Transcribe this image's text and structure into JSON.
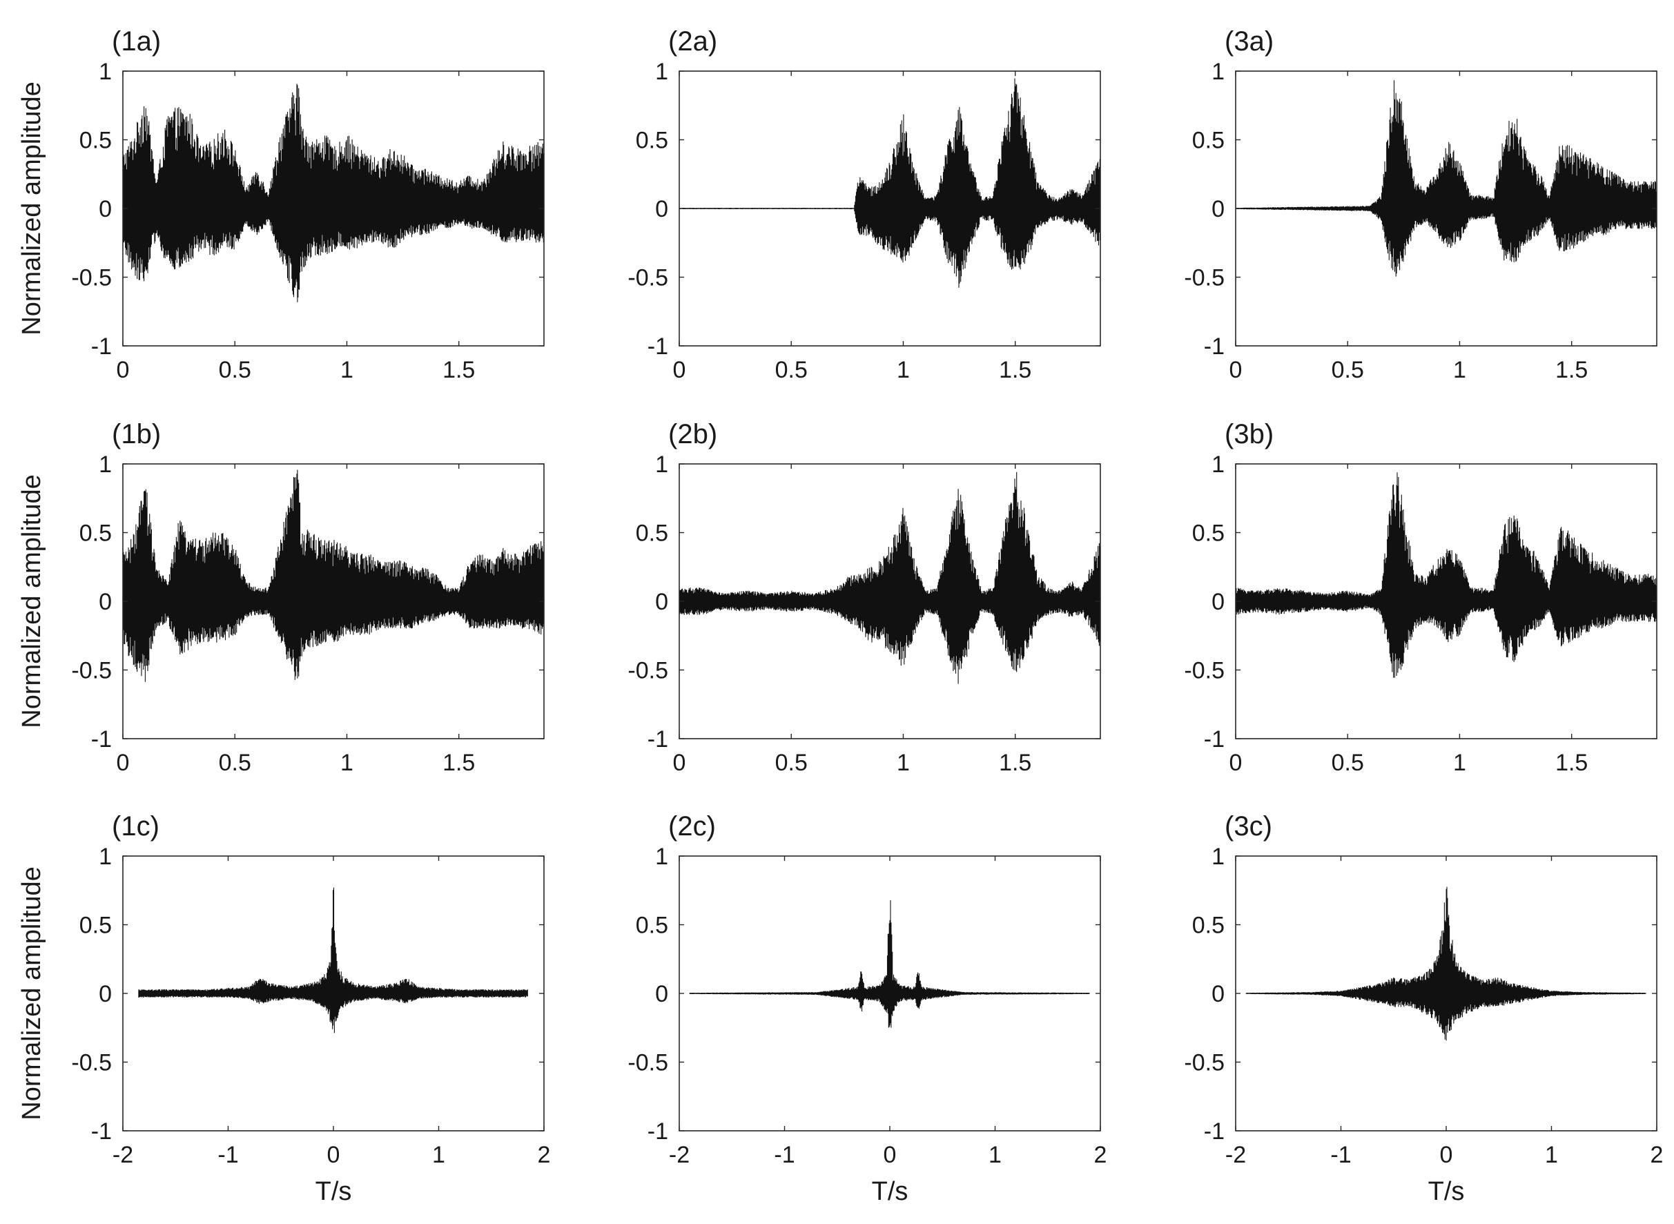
{
  "chart_data": [
    {
      "type": "line",
      "title": "(1a)",
      "ylabel": "Normalized amplitude",
      "xlabel": "",
      "xlim": [
        0,
        1.88
      ],
      "ylim": [
        -1,
        1
      ],
      "xticks": [
        "0",
        "0.5",
        "1",
        "1.5"
      ],
      "yticks": [
        "1",
        "0.5",
        "0",
        "-0.5",
        "-1"
      ],
      "grid": false,
      "series": [
        {
          "x": [
            0,
            0.05,
            0.1,
            0.15,
            0.2,
            0.25,
            0.3,
            0.35,
            0.4,
            0.45,
            0.5,
            0.55,
            0.6,
            0.65,
            0.7,
            0.75,
            0.78,
            0.8,
            0.85,
            0.9,
            0.95,
            1.0,
            1.05,
            1.1,
            1.15,
            1.2,
            1.25,
            1.3,
            1.35,
            1.4,
            1.45,
            1.5,
            1.55,
            1.6,
            1.65,
            1.7,
            1.75,
            1.8,
            1.88
          ],
          "upper": [
            0.4,
            0.55,
            0.85,
            0.2,
            0.7,
            0.75,
            0.7,
            0.45,
            0.5,
            0.6,
            0.45,
            0.15,
            0.3,
            0.12,
            0.55,
            0.8,
            1.0,
            0.6,
            0.5,
            0.55,
            0.45,
            0.55,
            0.45,
            0.4,
            0.35,
            0.45,
            0.4,
            0.3,
            0.3,
            0.25,
            0.22,
            0.2,
            0.25,
            0.2,
            0.35,
            0.5,
            0.45,
            0.45,
            0.5
          ],
          "lower": [
            -0.3,
            -0.5,
            -0.55,
            -0.2,
            -0.45,
            -0.45,
            -0.4,
            -0.3,
            -0.35,
            -0.3,
            -0.3,
            -0.12,
            -0.2,
            -0.1,
            -0.35,
            -0.6,
            -0.75,
            -0.45,
            -0.35,
            -0.35,
            -0.3,
            -0.3,
            -0.3,
            -0.25,
            -0.25,
            -0.3,
            -0.25,
            -0.2,
            -0.2,
            -0.15,
            -0.15,
            -0.12,
            -0.15,
            -0.15,
            -0.2,
            -0.25,
            -0.25,
            -0.25,
            -0.25
          ]
        }
      ]
    },
    {
      "type": "line",
      "title": "(2a)",
      "ylabel": "",
      "xlabel": "",
      "xlim": [
        0,
        1.88
      ],
      "ylim": [
        -1,
        1
      ],
      "xticks": [
        "0",
        "0.5",
        "1",
        "1.5"
      ],
      "yticks": [
        "1",
        "0.5",
        "0",
        "-0.5",
        "-1"
      ],
      "grid": false,
      "series": [
        {
          "x": [
            0,
            0.78,
            0.8,
            0.85,
            0.9,
            0.95,
            1.0,
            1.05,
            1.1,
            1.15,
            1.2,
            1.25,
            1.3,
            1.35,
            1.4,
            1.45,
            1.5,
            1.55,
            1.6,
            1.65,
            1.7,
            1.75,
            1.8,
            1.88
          ],
          "upper": [
            0.005,
            0.005,
            0.25,
            0.15,
            0.2,
            0.4,
            0.7,
            0.3,
            0.08,
            0.1,
            0.5,
            0.75,
            0.35,
            0.08,
            0.1,
            0.6,
            1.0,
            0.6,
            0.2,
            0.1,
            0.08,
            0.15,
            0.1,
            0.4
          ],
          "lower": [
            -0.005,
            -0.005,
            -0.2,
            -0.2,
            -0.3,
            -0.35,
            -0.45,
            -0.25,
            -0.08,
            -0.1,
            -0.4,
            -0.6,
            -0.3,
            -0.08,
            -0.1,
            -0.35,
            -0.5,
            -0.4,
            -0.15,
            -0.1,
            -0.08,
            -0.12,
            -0.1,
            -0.3
          ]
        }
      ]
    },
    {
      "type": "line",
      "title": "(3a)",
      "ylabel": "",
      "xlabel": "",
      "xlim": [
        0,
        1.88
      ],
      "ylim": [
        -1,
        1
      ],
      "xticks": [
        "0",
        "0.5",
        "1",
        "1.5"
      ],
      "yticks": [
        "1",
        "0.5",
        "0",
        "-0.5",
        "-1"
      ],
      "grid": false,
      "series": [
        {
          "x": [
            0,
            0.6,
            0.65,
            0.7,
            0.72,
            0.75,
            0.8,
            0.85,
            0.9,
            0.95,
            1.0,
            1.05,
            1.1,
            1.15,
            1.2,
            1.25,
            1.3,
            1.35,
            1.4,
            1.45,
            1.5,
            1.55,
            1.6,
            1.65,
            1.7,
            1.75,
            1.8,
            1.88
          ],
          "upper": [
            0.005,
            0.02,
            0.1,
            0.9,
            1.0,
            0.7,
            0.2,
            0.15,
            0.3,
            0.5,
            0.35,
            0.1,
            0.1,
            0.08,
            0.6,
            0.7,
            0.4,
            0.3,
            0.1,
            0.5,
            0.45,
            0.4,
            0.35,
            0.3,
            0.25,
            0.2,
            0.2,
            0.2
          ],
          "lower": [
            -0.005,
            -0.02,
            -0.1,
            -0.5,
            -0.5,
            -0.4,
            -0.15,
            -0.1,
            -0.2,
            -0.3,
            -0.25,
            -0.08,
            -0.08,
            -0.06,
            -0.4,
            -0.4,
            -0.25,
            -0.2,
            -0.08,
            -0.35,
            -0.3,
            -0.25,
            -0.2,
            -0.2,
            -0.15,
            -0.15,
            -0.15,
            -0.15
          ]
        }
      ]
    },
    {
      "type": "line",
      "title": "(1b)",
      "ylabel": "Normalized amplitude",
      "xlabel": "",
      "xlim": [
        0,
        1.88
      ],
      "ylim": [
        -1,
        1
      ],
      "xticks": [
        "0",
        "0.5",
        "1",
        "1.5"
      ],
      "yticks": [
        "1",
        "0.5",
        "0",
        "-0.5",
        "-1"
      ],
      "grid": false,
      "series": [
        {
          "x": [
            0,
            0.05,
            0.1,
            0.15,
            0.2,
            0.25,
            0.3,
            0.35,
            0.4,
            0.45,
            0.5,
            0.55,
            0.6,
            0.65,
            0.7,
            0.75,
            0.78,
            0.8,
            0.85,
            0.9,
            0.95,
            1.0,
            1.05,
            1.1,
            1.15,
            1.2,
            1.25,
            1.3,
            1.35,
            1.4,
            1.45,
            1.5,
            1.55,
            1.6,
            1.65,
            1.7,
            1.75,
            1.8,
            1.88
          ],
          "upper": [
            0.35,
            0.5,
            0.9,
            0.25,
            0.15,
            0.6,
            0.5,
            0.45,
            0.5,
            0.5,
            0.4,
            0.15,
            0.1,
            0.1,
            0.45,
            0.85,
            1.0,
            0.55,
            0.5,
            0.45,
            0.45,
            0.4,
            0.35,
            0.35,
            0.3,
            0.3,
            0.3,
            0.25,
            0.25,
            0.2,
            0.1,
            0.1,
            0.3,
            0.35,
            0.3,
            0.4,
            0.35,
            0.4,
            0.45
          ],
          "lower": [
            -0.3,
            -0.5,
            -0.6,
            -0.2,
            -0.15,
            -0.4,
            -0.35,
            -0.3,
            -0.3,
            -0.3,
            -0.25,
            -0.12,
            -0.1,
            -0.1,
            -0.3,
            -0.55,
            -0.6,
            -0.4,
            -0.35,
            -0.3,
            -0.3,
            -0.25,
            -0.25,
            -0.25,
            -0.2,
            -0.2,
            -0.2,
            -0.2,
            -0.15,
            -0.15,
            -0.1,
            -0.1,
            -0.2,
            -0.2,
            -0.2,
            -0.2,
            -0.2,
            -0.2,
            -0.25
          ]
        }
      ]
    },
    {
      "type": "line",
      "title": "(2b)",
      "ylabel": "",
      "xlabel": "",
      "xlim": [
        0,
        1.88
      ],
      "ylim": [
        -1,
        1
      ],
      "xticks": [
        "0",
        "0.5",
        "1",
        "1.5"
      ],
      "yticks": [
        "1",
        "0.5",
        "0",
        "-0.5",
        "-1"
      ],
      "grid": false,
      "series": [
        {
          "x": [
            0,
            0.1,
            0.2,
            0.3,
            0.4,
            0.5,
            0.6,
            0.7,
            0.75,
            0.8,
            0.85,
            0.9,
            0.95,
            1.0,
            1.05,
            1.1,
            1.15,
            1.2,
            1.25,
            1.3,
            1.35,
            1.4,
            1.45,
            1.5,
            1.55,
            1.6,
            1.65,
            1.7,
            1.75,
            1.8,
            1.88
          ],
          "upper": [
            0.1,
            0.1,
            0.06,
            0.08,
            0.06,
            0.08,
            0.06,
            0.1,
            0.18,
            0.2,
            0.25,
            0.3,
            0.45,
            0.7,
            0.3,
            0.08,
            0.1,
            0.5,
            0.85,
            0.4,
            0.08,
            0.1,
            0.55,
            1.0,
            0.6,
            0.2,
            0.1,
            0.08,
            0.15,
            0.1,
            0.45
          ],
          "lower": [
            -0.1,
            -0.1,
            -0.06,
            -0.08,
            -0.06,
            -0.08,
            -0.06,
            -0.1,
            -0.15,
            -0.2,
            -0.3,
            -0.3,
            -0.4,
            -0.5,
            -0.25,
            -0.08,
            -0.1,
            -0.4,
            -0.65,
            -0.3,
            -0.08,
            -0.1,
            -0.35,
            -0.55,
            -0.4,
            -0.15,
            -0.1,
            -0.08,
            -0.12,
            -0.1,
            -0.35
          ]
        }
      ]
    },
    {
      "type": "line",
      "title": "(3b)",
      "ylabel": "",
      "xlabel": "",
      "xlim": [
        0,
        1.88
      ],
      "ylim": [
        -1,
        1
      ],
      "xticks": [
        "0",
        "0.5",
        "1",
        "1.5"
      ],
      "yticks": [
        "1",
        "0.5",
        "0",
        "-0.5",
        "-1"
      ],
      "grid": false,
      "series": [
        {
          "x": [
            0,
            0.1,
            0.2,
            0.3,
            0.4,
            0.5,
            0.6,
            0.65,
            0.7,
            0.72,
            0.75,
            0.8,
            0.85,
            0.9,
            0.95,
            1.0,
            1.05,
            1.1,
            1.15,
            1.2,
            1.25,
            1.3,
            1.35,
            1.4,
            1.45,
            1.5,
            1.55,
            1.6,
            1.65,
            1.7,
            1.75,
            1.8,
            1.88
          ],
          "upper": [
            0.1,
            0.08,
            0.1,
            0.08,
            0.06,
            0.08,
            0.05,
            0.1,
            0.9,
            1.0,
            0.7,
            0.2,
            0.2,
            0.3,
            0.4,
            0.35,
            0.1,
            0.1,
            0.08,
            0.6,
            0.65,
            0.4,
            0.35,
            0.1,
            0.55,
            0.5,
            0.4,
            0.35,
            0.3,
            0.25,
            0.2,
            0.2,
            0.2
          ],
          "lower": [
            -0.1,
            -0.08,
            -0.1,
            -0.08,
            -0.06,
            -0.08,
            -0.05,
            -0.1,
            -0.55,
            -0.6,
            -0.45,
            -0.2,
            -0.15,
            -0.2,
            -0.3,
            -0.25,
            -0.08,
            -0.08,
            -0.06,
            -0.4,
            -0.45,
            -0.25,
            -0.2,
            -0.08,
            -0.35,
            -0.3,
            -0.25,
            -0.2,
            -0.2,
            -0.15,
            -0.15,
            -0.15,
            -0.15
          ]
        }
      ]
    },
    {
      "type": "line",
      "title": "(1c)",
      "ylabel": "Normalized amplitude",
      "xlabel": "T/s",
      "xlim": [
        -2,
        2
      ],
      "ylim": [
        -1,
        1
      ],
      "xticks": [
        "-2",
        "-1",
        "0",
        "1",
        "2"
      ],
      "yticks": [
        "1",
        "0.5",
        "0",
        "-0.5",
        "-1"
      ],
      "grid": false,
      "series": [
        {
          "x": [
            -1.85,
            -1.5,
            -1.2,
            -1.0,
            -0.8,
            -0.7,
            -0.6,
            -0.4,
            -0.2,
            -0.1,
            -0.05,
            -0.02,
            0,
            0.02,
            0.05,
            0.1,
            0.2,
            0.4,
            0.6,
            0.7,
            0.8,
            1.0,
            1.2,
            1.5,
            1.85
          ],
          "upper": [
            0.03,
            0.03,
            0.03,
            0.04,
            0.05,
            0.12,
            0.08,
            0.05,
            0.08,
            0.12,
            0.2,
            0.35,
            0.93,
            0.35,
            0.2,
            0.12,
            0.08,
            0.05,
            0.08,
            0.12,
            0.05,
            0.04,
            0.03,
            0.03,
            0.03
          ],
          "lower": [
            -0.03,
            -0.03,
            -0.03,
            -0.03,
            -0.04,
            -0.08,
            -0.06,
            -0.04,
            -0.06,
            -0.1,
            -0.15,
            -0.25,
            -0.32,
            -0.25,
            -0.15,
            -0.1,
            -0.06,
            -0.04,
            -0.06,
            -0.08,
            -0.04,
            -0.03,
            -0.03,
            -0.03,
            -0.03
          ]
        }
      ]
    },
    {
      "type": "line",
      "title": "(2c)",
      "ylabel": "",
      "xlabel": "T/s",
      "xlim": [
        -2,
        2
      ],
      "ylim": [
        -1,
        1
      ],
      "xticks": [
        "-2",
        "-1",
        "0",
        "1",
        "2"
      ],
      "yticks": [
        "1",
        "0.5",
        "0",
        "-0.5",
        "-1"
      ],
      "grid": false,
      "series": [
        {
          "x": [
            -1.9,
            -0.7,
            -0.5,
            -0.3,
            -0.27,
            -0.24,
            -0.1,
            -0.03,
            0,
            0.03,
            0.1,
            0.24,
            0.27,
            0.3,
            0.5,
            0.7,
            1.9
          ],
          "upper": [
            0.005,
            0.01,
            0.03,
            0.05,
            0.2,
            0.05,
            0.06,
            0.15,
            0.95,
            0.15,
            0.06,
            0.05,
            0.2,
            0.05,
            0.03,
            0.01,
            0.005
          ],
          "lower": [
            -0.005,
            -0.01,
            -0.03,
            -0.05,
            -0.15,
            -0.05,
            -0.06,
            -0.15,
            -0.33,
            -0.15,
            -0.06,
            -0.05,
            -0.15,
            -0.05,
            -0.03,
            -0.01,
            -0.005
          ]
        }
      ]
    },
    {
      "type": "line",
      "title": "(3c)",
      "ylabel": "",
      "xlabel": "T/s",
      "xlim": [
        -2,
        2
      ],
      "ylim": [
        -1,
        1
      ],
      "xticks": [
        "-2",
        "-1",
        "0",
        "1",
        "2"
      ],
      "yticks": [
        "1",
        "0.5",
        "0",
        "-0.5",
        "-1"
      ],
      "grid": false,
      "series": [
        {
          "x": [
            -1.9,
            -1.3,
            -1.0,
            -0.8,
            -0.6,
            -0.5,
            -0.35,
            -0.2,
            -0.1,
            -0.03,
            0,
            0.03,
            0.1,
            0.2,
            0.35,
            0.5,
            0.6,
            0.8,
            1.0,
            1.3,
            1.9
          ],
          "upper": [
            0.005,
            0.01,
            0.02,
            0.05,
            0.08,
            0.12,
            0.1,
            0.15,
            0.25,
            0.5,
            0.97,
            0.5,
            0.25,
            0.15,
            0.1,
            0.12,
            0.08,
            0.05,
            0.02,
            0.01,
            0.005
          ],
          "lower": [
            -0.005,
            -0.01,
            -0.02,
            -0.05,
            -0.08,
            -0.1,
            -0.1,
            -0.15,
            -0.2,
            -0.3,
            -0.38,
            -0.3,
            -0.2,
            -0.15,
            -0.1,
            -0.1,
            -0.08,
            -0.05,
            -0.02,
            -0.01,
            -0.005
          ]
        }
      ]
    }
  ]
}
